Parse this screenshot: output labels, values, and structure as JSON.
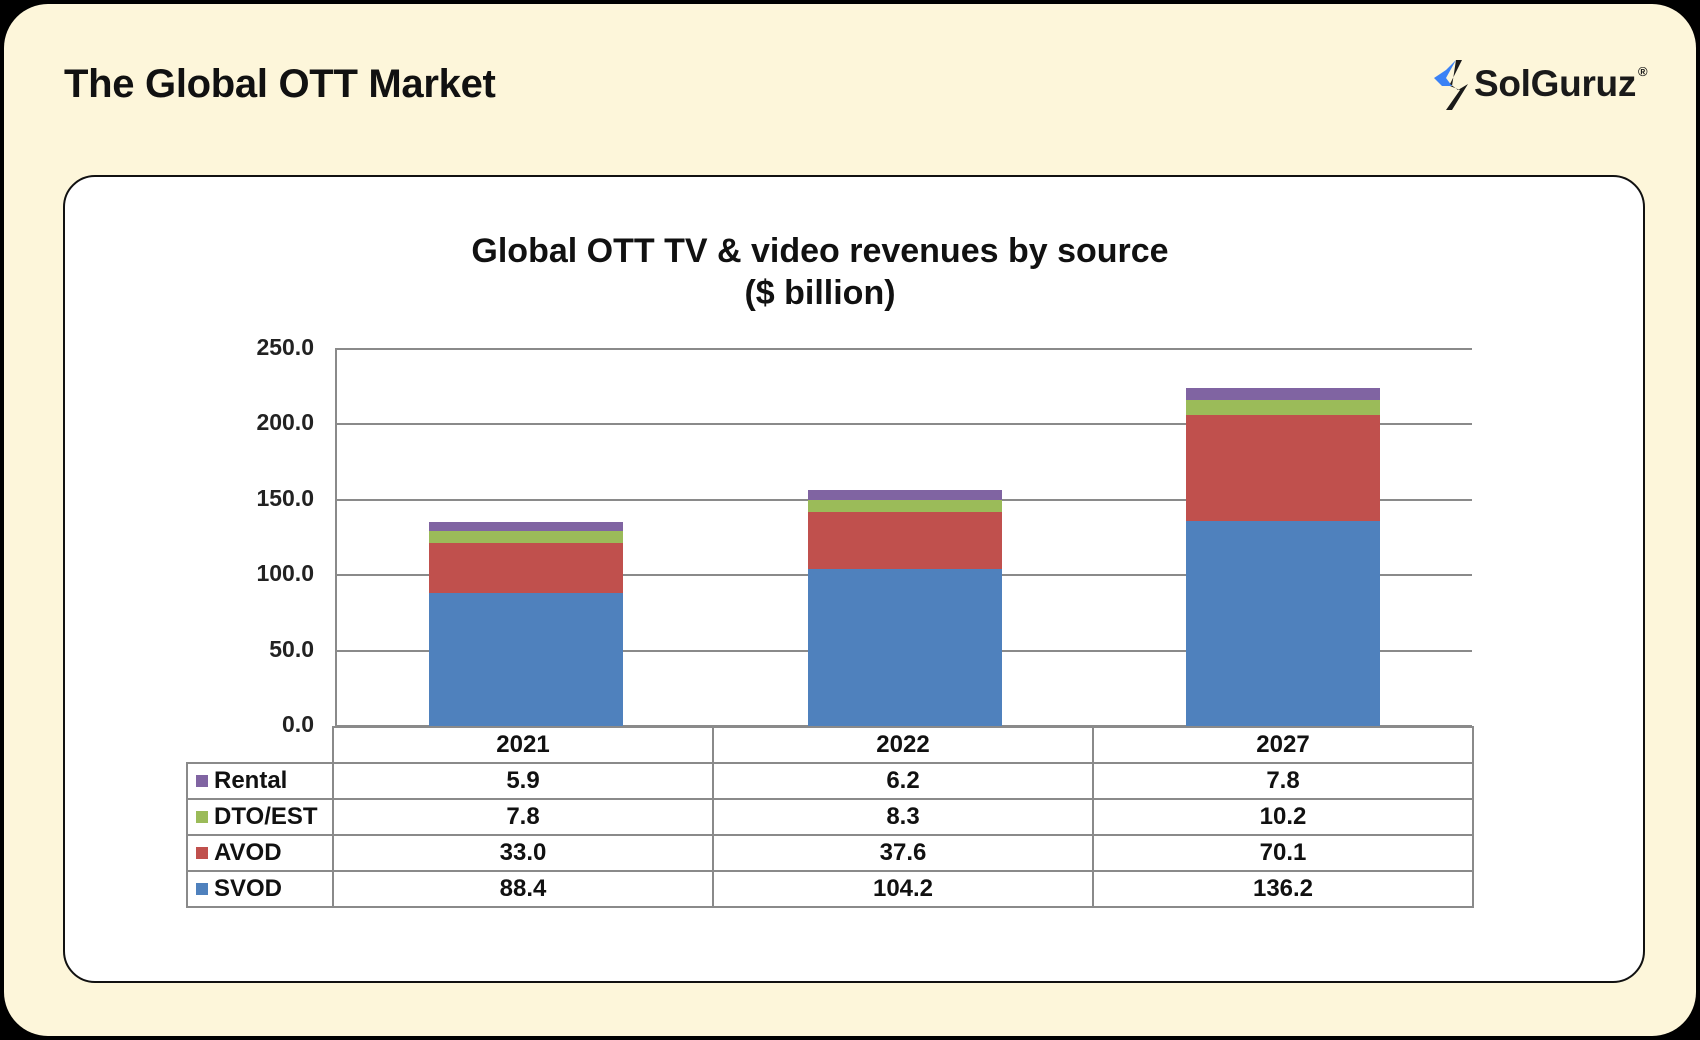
{
  "page": {
    "title": "The Global OTT Market",
    "logo": {
      "text": "SolGuruz",
      "registered": "®",
      "icon": "solguruz-logo-icon",
      "accent": "#3b82f6"
    },
    "background": "#fdf6da"
  },
  "chart": {
    "title_line1": "Global OTT TV & video revenues by source",
    "title_line2": "($ billion)",
    "y_ticks": [
      "250.0",
      "200.0",
      "150.0",
      "100.0",
      "50.0",
      "0.0"
    ],
    "categories": [
      "2021",
      "2022",
      "2027"
    ],
    "rows": [
      {
        "label": "Rental",
        "color": "#8064a2",
        "values": [
          "5.9",
          "6.2",
          "7.8"
        ]
      },
      {
        "label": "DTO/EST",
        "color": "#9bbb59",
        "values": [
          "7.8",
          "8.3",
          "10.2"
        ]
      },
      {
        "label": "AVOD",
        "color": "#c0504d",
        "values": [
          "33.0",
          "37.6",
          "70.1"
        ]
      },
      {
        "label": "SVOD",
        "color": "#4f81bd",
        "values": [
          "88.4",
          "104.2",
          "136.2"
        ]
      }
    ]
  },
  "chart_data": {
    "type": "bar",
    "stacked": true,
    "title": "Global OTT TV & video revenues by source ($ billion)",
    "xlabel": "",
    "ylabel": "$ billion",
    "ylim": [
      0,
      250
    ],
    "yticks": [
      0,
      50,
      100,
      150,
      200,
      250
    ],
    "grid": true,
    "legend_position": "data table (left of rows)",
    "categories": [
      "2021",
      "2022",
      "2027"
    ],
    "series": [
      {
        "name": "SVOD",
        "color": "#4f81bd",
        "values": [
          88.4,
          104.2,
          136.2
        ]
      },
      {
        "name": "AVOD",
        "color": "#c0504d",
        "values": [
          33.0,
          37.6,
          70.1
        ]
      },
      {
        "name": "DTO/EST",
        "color": "#9bbb59",
        "values": [
          7.8,
          8.3,
          10.2
        ]
      },
      {
        "name": "Rental",
        "color": "#8064a2",
        "values": [
          5.9,
          6.2,
          7.8
        ]
      }
    ]
  }
}
